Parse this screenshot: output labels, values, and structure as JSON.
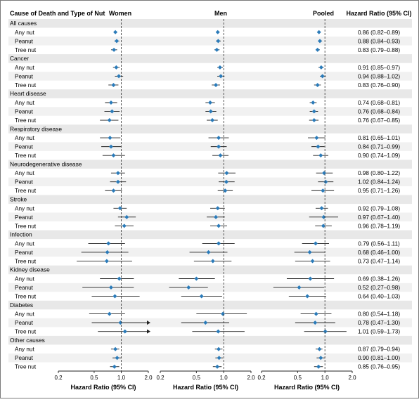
{
  "chart_data": {
    "type": "forest",
    "header": {
      "cause_label": "Cause of Death and Type of Nut",
      "panels": [
        "Women",
        "Men",
        "Pooled"
      ],
      "hr_label": "Hazard Ratio (95% CI)"
    },
    "x_axis": {
      "scale": "log",
      "ticks": [
        0.2,
        0.5,
        1.0,
        2.0
      ],
      "tick_labels": [
        "0.2",
        "0.5",
        "1.0",
        "2.0"
      ],
      "xlim": [
        0.2,
        2.0
      ],
      "reference_line": 1.0,
      "label": "Hazard Ratio (95% CI)"
    },
    "marker_color": "#2b7bb9",
    "groups": [
      {
        "name": "All causes",
        "rows": [
          {
            "label": "Any nut",
            "women": [
              0.86,
              0.83,
              0.9
            ],
            "men": [
              0.86,
              0.83,
              0.9
            ],
            "pooled": [
              0.86,
              0.82,
              0.89
            ],
            "hr_text": "0.86 (0.82–0.89)"
          },
          {
            "label": "Peanut",
            "women": [
              0.89,
              0.84,
              0.95
            ],
            "men": [
              0.87,
              0.82,
              0.93
            ],
            "pooled": [
              0.88,
              0.84,
              0.93
            ],
            "hr_text": "0.88 (0.84–0.93)"
          },
          {
            "label": "Tree nut",
            "women": [
              0.83,
              0.77,
              0.9
            ],
            "men": [
              0.84,
              0.79,
              0.9
            ],
            "pooled": [
              0.83,
              0.79,
              0.88
            ],
            "hr_text": "0.83 (0.79–0.88)"
          }
        ]
      },
      {
        "name": "Cancer",
        "rows": [
          {
            "label": "Any nut",
            "women": [
              0.88,
              0.81,
              0.96
            ],
            "men": [
              0.91,
              0.85,
              0.98
            ],
            "pooled": [
              0.91,
              0.85,
              0.97
            ],
            "hr_text": "0.91 (0.85–0.97)"
          },
          {
            "label": "Peanut",
            "women": [
              0.94,
              0.85,
              1.05
            ],
            "men": [
              0.93,
              0.85,
              1.02
            ],
            "pooled": [
              0.94,
              0.88,
              1.02
            ],
            "hr_text": "0.94 (0.88–1.02)"
          },
          {
            "label": "Tree nut",
            "women": [
              0.82,
              0.72,
              0.93
            ],
            "men": [
              0.82,
              0.74,
              0.91
            ],
            "pooled": [
              0.83,
              0.76,
              0.9
            ],
            "hr_text": "0.83 (0.76–0.90)"
          }
        ]
      },
      {
        "name": "Heart disease",
        "rows": [
          {
            "label": "Any nut",
            "women": [
              0.77,
              0.66,
              0.9
            ],
            "men": [
              0.71,
              0.63,
              0.8
            ],
            "pooled": [
              0.74,
              0.68,
              0.81
            ],
            "hr_text": "0.74 (0.68–0.81)"
          },
          {
            "label": "Peanut",
            "women": [
              0.79,
              0.65,
              0.96
            ],
            "men": [
              0.72,
              0.63,
              0.83
            ],
            "pooled": [
              0.76,
              0.68,
              0.84
            ],
            "hr_text": "0.76 (0.68–0.84)"
          },
          {
            "label": "Tree nut",
            "women": [
              0.74,
              0.58,
              0.93
            ],
            "men": [
              0.75,
              0.65,
              0.86
            ],
            "pooled": [
              0.76,
              0.67,
              0.85
            ],
            "hr_text": "0.76 (0.67–0.85)"
          }
        ]
      },
      {
        "name": "Respiratory disease",
        "rows": [
          {
            "label": "Any nut",
            "women": [
              0.75,
              0.58,
              0.98
            ],
            "men": [
              0.88,
              0.68,
              1.14
            ],
            "pooled": [
              0.81,
              0.65,
              1.01
            ],
            "hr_text": "0.81 (0.65–1.01)"
          },
          {
            "label": "Peanut",
            "women": [
              0.77,
              0.6,
              1.0
            ],
            "men": [
              0.88,
              0.72,
              1.08
            ],
            "pooled": [
              0.84,
              0.71,
              0.99
            ],
            "hr_text": "0.84 (0.71–0.99)"
          },
          {
            "label": "Tree nut",
            "women": [
              0.82,
              0.62,
              1.1
            ],
            "men": [
              0.92,
              0.75,
              1.13
            ],
            "pooled": [
              0.9,
              0.74,
              1.09
            ],
            "hr_text": "0.90 (0.74–1.09)"
          }
        ]
      },
      {
        "name": "Neurodegenerative disease",
        "rows": [
          {
            "label": "Any nut",
            "women": [
              0.92,
              0.77,
              1.1
            ],
            "men": [
              1.08,
              0.87,
              1.35
            ],
            "pooled": [
              0.98,
              0.8,
              1.22
            ],
            "hr_text": "0.98 (0.80–1.22)"
          },
          {
            "label": "Peanut",
            "women": [
              0.92,
              0.75,
              1.13
            ],
            "men": [
              1.07,
              0.88,
              1.32
            ],
            "pooled": [
              1.02,
              0.84,
              1.24
            ],
            "hr_text": "1.02 (0.84–1.24)"
          },
          {
            "label": "Tree nut",
            "women": [
              0.82,
              0.66,
              1.02
            ],
            "men": [
              1.04,
              0.86,
              1.26
            ],
            "pooled": [
              0.95,
              0.71,
              1.26
            ],
            "hr_text": "0.95 (0.71–1.26)"
          }
        ]
      },
      {
        "name": "Stroke",
        "rows": [
          {
            "label": "Any nut",
            "women": [
              0.97,
              0.82,
              1.15
            ],
            "men": [
              0.86,
              0.71,
              1.03
            ],
            "pooled": [
              0.92,
              0.79,
              1.08
            ],
            "hr_text": "0.92 (0.79–1.08)"
          },
          {
            "label": "Peanut",
            "women": [
              1.15,
              0.92,
              1.45
            ],
            "men": [
              0.82,
              0.65,
              1.03
            ],
            "pooled": [
              0.97,
              0.67,
              1.4
            ],
            "hr_text": "0.97 (0.67–1.40)"
          },
          {
            "label": "Tree nut",
            "women": [
              1.08,
              0.85,
              1.37
            ],
            "men": [
              0.88,
              0.71,
              1.09
            ],
            "pooled": [
              0.96,
              0.78,
              1.19
            ],
            "hr_text": "0.96 (0.78–1.19)"
          }
        ]
      },
      {
        "name": "Infection",
        "rows": [
          {
            "label": "Any nut",
            "women": [
              0.72,
              0.43,
              1.1
            ],
            "men": [
              0.88,
              0.58,
              1.32
            ],
            "pooled": [
              0.79,
              0.56,
              1.11
            ],
            "hr_text": "0.79 (0.56–1.11)"
          },
          {
            "label": "Peanut",
            "women": [
              0.7,
              0.36,
              1.2
            ],
            "men": [
              0.68,
              0.42,
              1.1
            ],
            "pooled": [
              0.68,
              0.46,
              1.0
            ],
            "hr_text": "0.68 (0.46–1.00)"
          },
          {
            "label": "Tree nut",
            "women": [
              0.69,
              0.32,
              1.32
            ],
            "men": [
              0.76,
              0.47,
              1.22
            ],
            "pooled": [
              0.73,
              0.47,
              1.14
            ],
            "hr_text": "0.73 (0.47–1.14)"
          }
        ]
      },
      {
        "name": "Kidney disease",
        "rows": [
          {
            "label": "Any nut",
            "women": [
              0.95,
              0.58,
              1.38
            ],
            "men": [
              0.5,
              0.32,
              0.8
            ],
            "pooled": [
              0.69,
              0.38,
              1.26
            ],
            "hr_text": "0.69 (0.38–1.26)"
          },
          {
            "label": "Peanut",
            "women": [
              0.77,
              0.37,
              1.38
            ],
            "men": [
              0.41,
              0.25,
              0.67
            ],
            "pooled": [
              0.52,
              0.27,
              0.98
            ],
            "hr_text": "0.52 (0.27–0.98)"
          },
          {
            "label": "Tree nut",
            "women": [
              0.85,
              0.47,
              1.6
            ],
            "men": [
              0.57,
              0.34,
              0.96
            ],
            "pooled": [
              0.64,
              0.4,
              1.03
            ],
            "hr_text": "0.64 (0.40–1.03)"
          }
        ]
      },
      {
        "name": "Diabetes",
        "rows": [
          {
            "label": "Any nut",
            "women": [
              0.74,
              0.44,
              1.1
            ],
            "men": [
              0.98,
              0.5,
              1.8
            ],
            "pooled": [
              0.8,
              0.54,
              1.18
            ],
            "hr_text": "0.80 (0.54–1.18)"
          },
          {
            "label": "Peanut",
            "women": [
              0.98,
              0.47,
              2.0
            ],
            "men": [
              0.63,
              0.34,
              1.15
            ],
            "pooled": [
              0.78,
              0.47,
              1.3
            ],
            "hr_text": "0.78 (0.47–1.30)"
          },
          {
            "label": "Tree nut",
            "women": [
              1.1,
              0.55,
              2.0
            ],
            "men": [
              0.87,
              0.45,
              1.7
            ],
            "pooled": [
              1.01,
              0.59,
              1.73
            ],
            "hr_text": "1.01 (0.59–1.73)"
          }
        ]
      },
      {
        "name": "Other causes",
        "rows": [
          {
            "label": "Any nut",
            "women": [
              0.86,
              0.77,
              0.95
            ],
            "men": [
              0.88,
              0.8,
              0.97
            ],
            "pooled": [
              0.87,
              0.79,
              0.94
            ],
            "hr_text": "0.87 (0.79–0.94)"
          },
          {
            "label": "Peanut",
            "women": [
              0.9,
              0.8,
              1.01
            ],
            "men": [
              0.89,
              0.81,
              0.98
            ],
            "pooled": [
              0.9,
              0.81,
              1.0
            ],
            "hr_text": "0.90 (0.81–1.00)"
          },
          {
            "label": "Tree nut",
            "women": [
              0.84,
              0.75,
              0.95
            ],
            "men": [
              0.85,
              0.76,
              0.95
            ],
            "pooled": [
              0.85,
              0.76,
              0.95
            ],
            "hr_text": "0.85 (0.76–0.95)"
          }
        ]
      }
    ]
  }
}
